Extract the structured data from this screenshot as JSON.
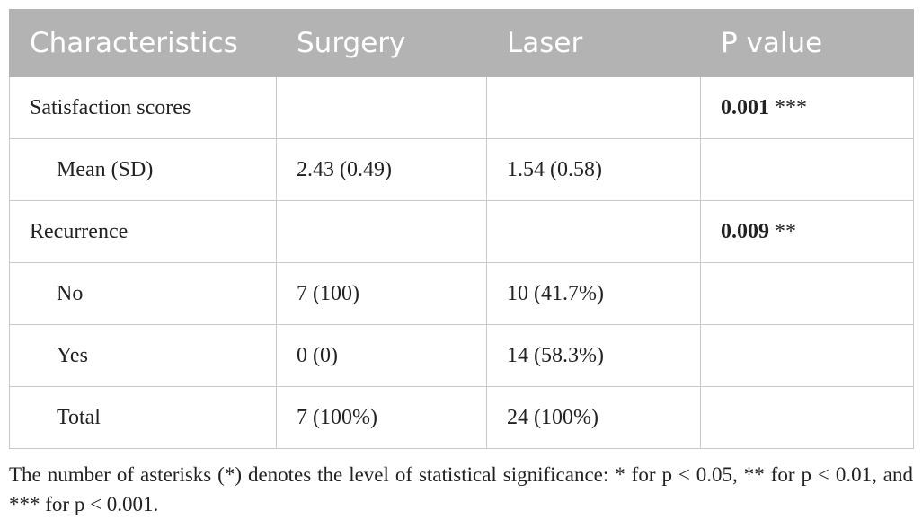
{
  "table": {
    "header": [
      "Characteristics",
      "Surgery",
      "Laser",
      "P value"
    ],
    "groups": [
      {
        "label": "Satisfaction scores",
        "p_value": "0.001",
        "p_stars": "***",
        "items": [
          {
            "label": "Mean (SD)",
            "surgery": "2.43 (0.49)",
            "laser": "1.54 (0.58)"
          }
        ]
      },
      {
        "label": "Recurrence",
        "p_value": "0.009",
        "p_stars": "**",
        "items": [
          {
            "label": "No",
            "surgery": "7 (100)",
            "laser": "10 (41.7%)"
          },
          {
            "label": "Yes",
            "surgery": "0 (0)",
            "laser": "14 (58.3%)"
          },
          {
            "label": "Total",
            "surgery": "7 (100%)",
            "laser": "24 (100%)"
          }
        ]
      }
    ],
    "footnote": "The number of asterisks (*) denotes the level of statistical significance: * for p < 0.05, ** for p < 0.01, and *** for p < 0.001."
  }
}
